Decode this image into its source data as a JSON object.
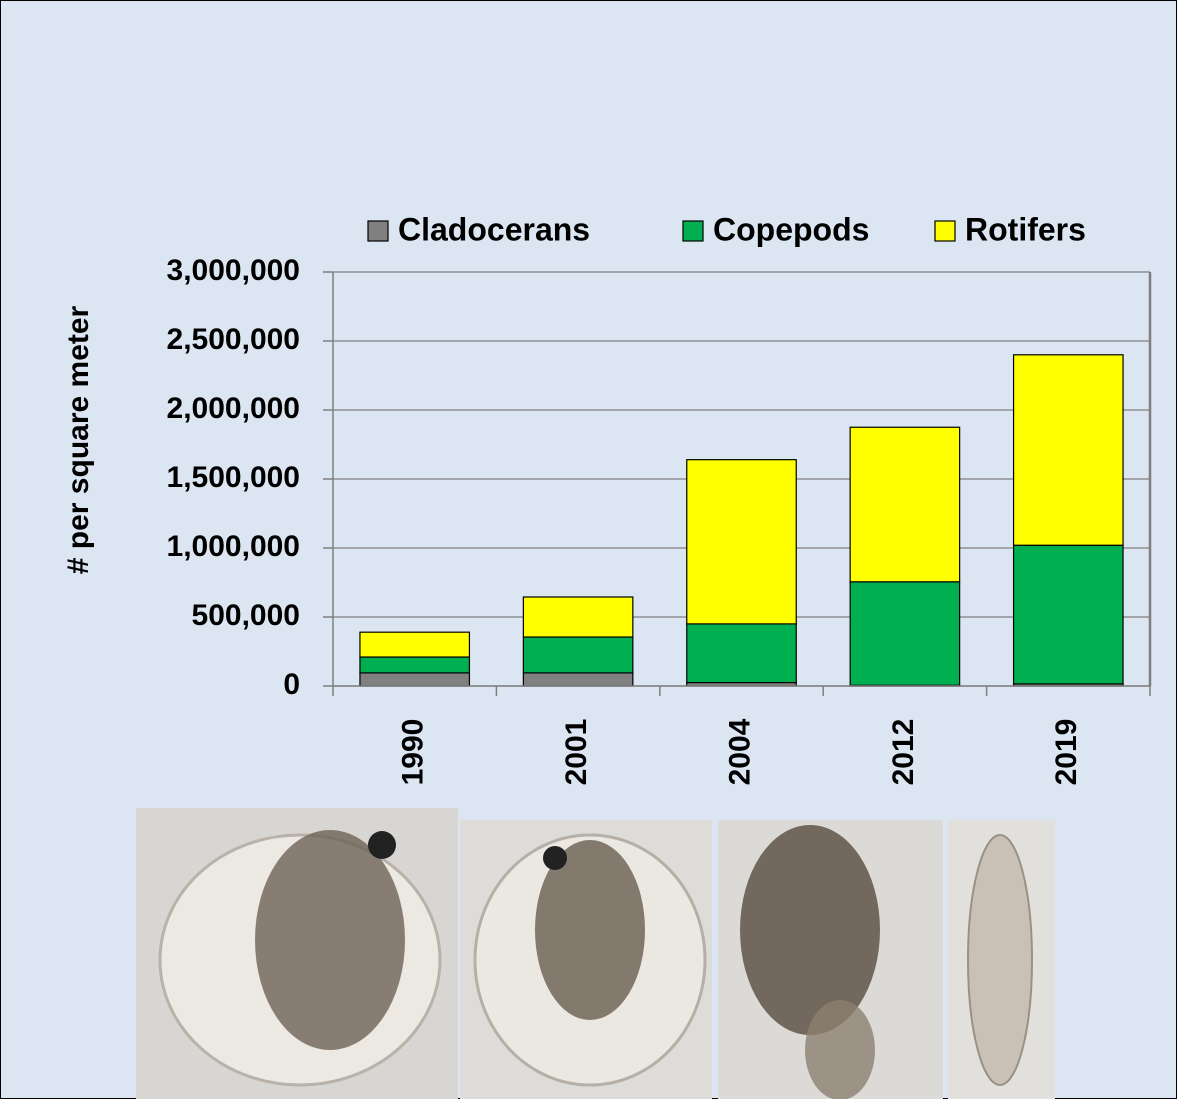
{
  "chart_data": {
    "type": "stacked-bar",
    "y_label": "# per square meter",
    "categories": [
      "1990",
      "2001",
      "2004",
      "2012",
      "2019"
    ],
    "series": [
      {
        "name": "Cladocerans",
        "color": "#808080",
        "values": [
          95000,
          95000,
          25000,
          5000,
          15000
        ]
      },
      {
        "name": "Copepods",
        "color": "#00b050",
        "values": [
          115000,
          260000,
          425000,
          750000,
          1005000
        ]
      },
      {
        "name": "Rotifers",
        "color": "#ffff00",
        "values": [
          180000,
          290000,
          1190000,
          1120000,
          1380000
        ]
      }
    ],
    "ylim": [
      0,
      3000000
    ],
    "yticks": [
      0,
      {
        "value": 500000,
        "label": "500,000"
      },
      {
        "value": 1000000,
        "label": "1,000,000"
      },
      {
        "value": 1500000,
        "label": "1,500,000"
      },
      {
        "value": 2000000,
        "label": "2,000,000"
      },
      {
        "value": 2500000,
        "label": "2,500,000"
      },
      {
        "value": 3000000,
        "label": "3,000,000"
      }
    ],
    "grid": true,
    "legend": "top"
  }
}
